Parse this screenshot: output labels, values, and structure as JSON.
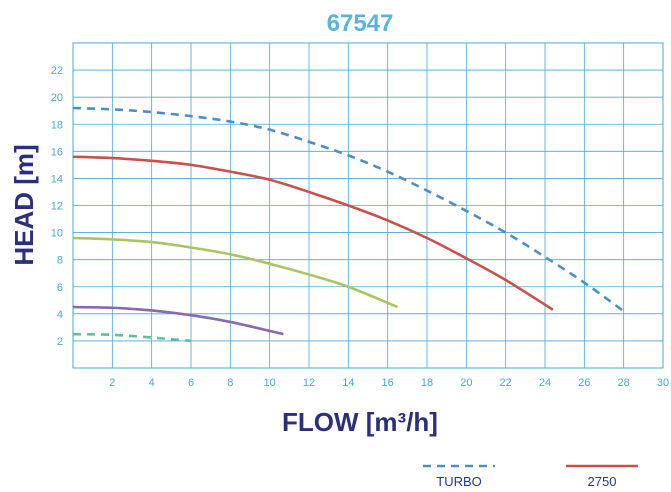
{
  "chart_data": {
    "type": "line",
    "title": "67547",
    "xlabel": "FLOW [m³/h]",
    "ylabel": "HEAD [m]",
    "xlim": [
      0,
      30
    ],
    "ylim": [
      0,
      24
    ],
    "xticks": [
      "2",
      "4",
      "6",
      "8",
      "10",
      "12",
      "14",
      "16",
      "18",
      "20",
      "22",
      "24",
      "26",
      "28",
      "30"
    ],
    "yticks": [
      "2",
      "4",
      "6",
      "8",
      "10",
      "12",
      "14",
      "16",
      "18",
      "20",
      "22"
    ],
    "grid": true,
    "legend_position": "bottom-right",
    "series": [
      {
        "name": "TURBO",
        "color": "#4a8fc8",
        "dash": true,
        "x": [
          0,
          2,
          4,
          6,
          8,
          10,
          12,
          14,
          16,
          18,
          20,
          22,
          24,
          26,
          28
        ],
        "y": [
          19.2,
          19.1,
          18.9,
          18.6,
          18.2,
          17.6,
          16.7,
          15.7,
          14.5,
          13.1,
          11.6,
          10.0,
          8.2,
          6.3,
          4.2
        ]
      },
      {
        "name": "2750",
        "color": "#c9514b",
        "dash": false,
        "x": [
          0,
          2,
          4,
          6,
          8,
          10,
          12,
          14,
          16,
          18,
          20,
          22,
          24.4
        ],
        "y": [
          15.6,
          15.5,
          15.3,
          15.0,
          14.5,
          13.9,
          13.0,
          12.0,
          10.9,
          9.6,
          8.1,
          6.5,
          4.3
        ]
      },
      {
        "color": "#a8c561",
        "dash": false,
        "x": [
          0,
          2,
          4,
          6,
          8,
          10,
          12,
          14,
          16.5
        ],
        "y": [
          9.6,
          9.5,
          9.3,
          8.9,
          8.4,
          7.7,
          6.9,
          6.0,
          4.5
        ]
      },
      {
        "color": "#8a6aae",
        "dash": false,
        "x": [
          0,
          2,
          4,
          6,
          8,
          10.7
        ],
        "y": [
          4.5,
          4.45,
          4.25,
          3.9,
          3.4,
          2.5
        ]
      },
      {
        "color": "#5cbfa6",
        "dash": true,
        "x": [
          0,
          2,
          4,
          6
        ],
        "y": [
          2.5,
          2.45,
          2.25,
          2.0
        ]
      }
    ]
  }
}
